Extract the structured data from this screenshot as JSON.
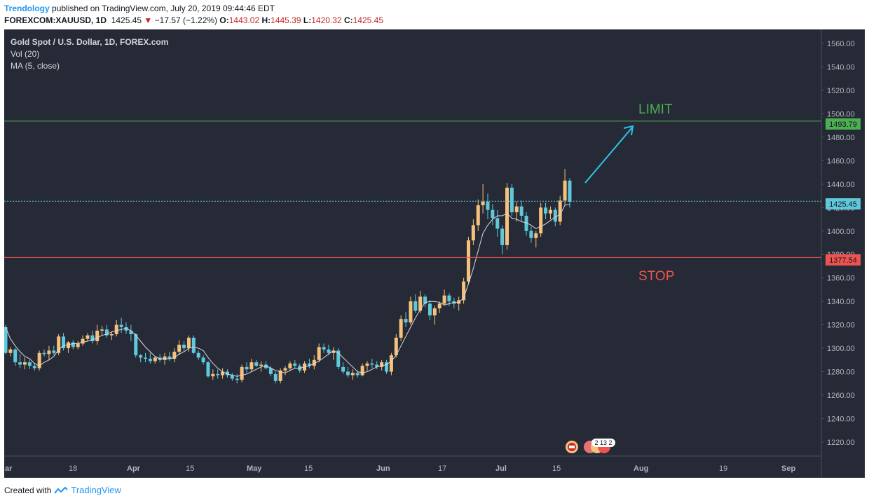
{
  "header": {
    "brand": "Trendology",
    "published": "published on TradingView.com, July 20, 2019 09:44:46 EDT",
    "symbol": "FOREXCOM:XAUUSD, 1D",
    "price": "1425.45",
    "change": "−17.57 (−1.22%)",
    "o_label": "O:",
    "o_val": "1443.02",
    "h_label": "H:",
    "h_val": "1445.39",
    "l_label": "L:",
    "l_val": "1420.32",
    "c_label": "C:",
    "c_val": "1425.45"
  },
  "legend": {
    "title": "Gold Spot / U.S. Dollar, 1D, FOREX.com",
    "vol": "Vol (20)",
    "ma": "MA (5, close)"
  },
  "annotations": {
    "limit": "LIMIT",
    "stop": "STOP",
    "limit_price": "1493.79",
    "stop_price": "1377.54",
    "last_price": "1425.45",
    "badge": "2 13 2"
  },
  "footer": {
    "created": "Created with",
    "brand": "TradingView"
  },
  "colors": {
    "background": "#262a36",
    "up": "#f6c27b",
    "down": "#5fc9dc",
    "ma": "#d8d8e0",
    "limit_line": "#4caf50",
    "stop_line": "#ef5350",
    "last_line": "#5fc9dc",
    "arrow": "#29c5e6"
  },
  "chart_data": {
    "type": "candlestick",
    "x_labels": [
      "ar",
      "18",
      "Apr",
      "15",
      "May",
      "15",
      "Jun",
      "17",
      "Jul",
      "15",
      "Aug",
      "19",
      "Sep"
    ],
    "y_ticks": [
      1220,
      1240,
      1260,
      1280,
      1300,
      1320,
      1340,
      1360,
      1380,
      1400,
      1420,
      1440,
      1460,
      1480,
      1500,
      1520,
      1540,
      1560
    ],
    "y_tick_labels": [
      "1220.00",
      "1240.00",
      "1260.00",
      "1280.00",
      "1300.00",
      "1320.00",
      "1340.00",
      "1360.00",
      "1380.00",
      "1400.00",
      "1420.00",
      "1440.00",
      "1460.00",
      "1480.00",
      "1500.00",
      "1520.00",
      "1540.00",
      "1560.00"
    ],
    "ylim": [
      1208,
      1572
    ],
    "horizontal_lines": [
      {
        "label": "LIMIT",
        "value": 1493.79
      },
      {
        "label": "STOP",
        "value": 1377.54
      },
      {
        "label": "last",
        "value": 1425.45
      }
    ],
    "ohlc": [
      [
        1318,
        1320,
        1295,
        1296
      ],
      [
        1296,
        1301,
        1293,
        1299
      ],
      [
        1299,
        1300,
        1285,
        1288
      ],
      [
        1288,
        1295,
        1283,
        1286
      ],
      [
        1286,
        1292,
        1282,
        1288
      ],
      [
        1288,
        1290,
        1282,
        1285
      ],
      [
        1285,
        1287,
        1281,
        1283
      ],
      [
        1283,
        1298,
        1281,
        1296
      ],
      [
        1296,
        1299,
        1293,
        1295
      ],
      [
        1295,
        1302,
        1290,
        1298
      ],
      [
        1298,
        1302,
        1294,
        1296
      ],
      [
        1296,
        1312,
        1294,
        1310
      ],
      [
        1310,
        1313,
        1298,
        1300
      ],
      [
        1300,
        1306,
        1296,
        1305
      ],
      [
        1305,
        1307,
        1299,
        1301
      ],
      [
        1301,
        1306,
        1299,
        1304
      ],
      [
        1304,
        1311,
        1302,
        1308
      ],
      [
        1308,
        1313,
        1306,
        1311
      ],
      [
        1311,
        1315,
        1304,
        1306
      ],
      [
        1306,
        1320,
        1303,
        1315
      ],
      [
        1315,
        1319,
        1311,
        1316
      ],
      [
        1316,
        1320,
        1309,
        1311
      ],
      [
        1311,
        1314,
        1307,
        1312
      ],
      [
        1312,
        1324,
        1310,
        1320
      ],
      [
        1320,
        1326,
        1313,
        1318
      ],
      [
        1318,
        1322,
        1312,
        1315
      ],
      [
        1315,
        1320,
        1306,
        1312
      ],
      [
        1312,
        1313,
        1292,
        1294
      ],
      [
        1294,
        1295,
        1288,
        1292
      ],
      [
        1292,
        1296,
        1288,
        1291
      ],
      [
        1291,
        1296,
        1287,
        1289
      ],
      [
        1289,
        1293,
        1287,
        1292
      ],
      [
        1292,
        1295,
        1288,
        1290
      ],
      [
        1290,
        1296,
        1286,
        1293
      ],
      [
        1293,
        1297,
        1289,
        1291
      ],
      [
        1291,
        1300,
        1288,
        1297
      ],
      [
        1297,
        1307,
        1294,
        1303
      ],
      [
        1303,
        1306,
        1297,
        1300
      ],
      [
        1300,
        1311,
        1297,
        1309
      ],
      [
        1309,
        1311,
        1295,
        1296
      ],
      [
        1296,
        1298,
        1290,
        1292
      ],
      [
        1292,
        1294,
        1286,
        1288
      ],
      [
        1288,
        1289,
        1275,
        1276
      ],
      [
        1276,
        1282,
        1273,
        1278
      ],
      [
        1278,
        1282,
        1274,
        1277
      ],
      [
        1277,
        1283,
        1274,
        1280
      ],
      [
        1280,
        1282,
        1275,
        1277
      ],
      [
        1277,
        1279,
        1272,
        1274
      ],
      [
        1274,
        1278,
        1270,
        1273
      ],
      [
        1273,
        1286,
        1271,
        1284
      ],
      [
        1284,
        1288,
        1279,
        1282
      ],
      [
        1282,
        1291,
        1280,
        1288
      ],
      [
        1288,
        1290,
        1284,
        1285
      ],
      [
        1285,
        1289,
        1280,
        1286
      ],
      [
        1286,
        1289,
        1282,
        1283
      ],
      [
        1283,
        1285,
        1276,
        1278
      ],
      [
        1278,
        1280,
        1270,
        1272
      ],
      [
        1272,
        1283,
        1270,
        1281
      ],
      [
        1281,
        1285,
        1277,
        1283
      ],
      [
        1283,
        1289,
        1281,
        1287
      ],
      [
        1287,
        1290,
        1283,
        1285
      ],
      [
        1285,
        1287,
        1279,
        1281
      ],
      [
        1281,
        1289,
        1279,
        1287
      ],
      [
        1287,
        1291,
        1283,
        1285
      ],
      [
        1285,
        1294,
        1282,
        1290
      ],
      [
        1290,
        1304,
        1288,
        1301
      ],
      [
        1301,
        1304,
        1296,
        1299
      ],
      [
        1299,
        1303,
        1294,
        1296
      ],
      [
        1296,
        1301,
        1290,
        1298
      ],
      [
        1298,
        1300,
        1282,
        1284
      ],
      [
        1284,
        1288,
        1278,
        1280
      ],
      [
        1280,
        1284,
        1275,
        1277
      ],
      [
        1277,
        1282,
        1273,
        1279
      ],
      [
        1279,
        1281,
        1275,
        1277
      ],
      [
        1277,
        1287,
        1276,
        1285
      ],
      [
        1285,
        1289,
        1281,
        1287
      ],
      [
        1287,
        1291,
        1283,
        1286
      ],
      [
        1286,
        1289,
        1282,
        1284
      ],
      [
        1284,
        1290,
        1281,
        1288
      ],
      [
        1288,
        1290,
        1278,
        1280
      ],
      [
        1280,
        1296,
        1277,
        1294
      ],
      [
        1294,
        1312,
        1292,
        1309
      ],
      [
        1309,
        1328,
        1306,
        1325
      ],
      [
        1325,
        1331,
        1318,
        1322
      ],
      [
        1322,
        1344,
        1320,
        1340
      ],
      [
        1340,
        1346,
        1330,
        1332
      ],
      [
        1332,
        1349,
        1330,
        1344
      ],
      [
        1344,
        1346,
        1335,
        1338
      ],
      [
        1338,
        1341,
        1324,
        1328
      ],
      [
        1328,
        1336,
        1320,
        1334
      ],
      [
        1334,
        1340,
        1330,
        1338
      ],
      [
        1338,
        1350,
        1336,
        1345
      ],
      [
        1345,
        1347,
        1336,
        1340
      ],
      [
        1340,
        1343,
        1334,
        1338
      ],
      [
        1338,
        1344,
        1332,
        1341
      ],
      [
        1341,
        1360,
        1338,
        1357
      ],
      [
        1357,
        1395,
        1355,
        1392
      ],
      [
        1392,
        1410,
        1388,
        1405
      ],
      [
        1405,
        1427,
        1400,
        1422
      ],
      [
        1422,
        1440,
        1415,
        1425
      ],
      [
        1425,
        1432,
        1410,
        1418
      ],
      [
        1418,
        1423,
        1405,
        1411
      ],
      [
        1411,
        1418,
        1395,
        1402
      ],
      [
        1402,
        1405,
        1380,
        1388
      ],
      [
        1388,
        1441,
        1384,
        1437
      ],
      [
        1437,
        1440,
        1413,
        1416
      ],
      [
        1416,
        1425,
        1408,
        1421
      ],
      [
        1421,
        1426,
        1408,
        1413
      ],
      [
        1413,
        1416,
        1396,
        1400
      ],
      [
        1400,
        1404,
        1390,
        1394
      ],
      [
        1394,
        1400,
        1386,
        1398
      ],
      [
        1398,
        1424,
        1395,
        1420
      ],
      [
        1420,
        1424,
        1410,
        1415
      ],
      [
        1415,
        1421,
        1410,
        1418
      ],
      [
        1418,
        1420,
        1404,
        1408
      ],
      [
        1408,
        1430,
        1405,
        1426
      ],
      [
        1426,
        1453,
        1422,
        1443
      ],
      [
        1443,
        1445,
        1420,
        1425
      ]
    ],
    "ma_values": [
      1318,
      1308,
      1302,
      1297,
      1293,
      1291,
      1287,
      1285,
      1288,
      1290,
      1293,
      1299,
      1302,
      1303,
      1304,
      1304,
      1305,
      1306,
      1307,
      1309,
      1311,
      1312,
      1314,
      1315,
      1316,
      1317,
      1315,
      1311,
      1306,
      1301,
      1297,
      1293,
      1291,
      1291,
      1291,
      1292,
      1295,
      1297,
      1300,
      1301,
      1300,
      1298,
      1292,
      1287,
      1283,
      1280,
      1278,
      1277,
      1276,
      1277,
      1278,
      1280,
      1282,
      1284,
      1285,
      1283,
      1281,
      1280,
      1279,
      1281,
      1283,
      1283,
      1284,
      1285,
      1287,
      1289,
      1292,
      1295,
      1298,
      1296,
      1292,
      1288,
      1284,
      1280,
      1279,
      1280,
      1282,
      1284,
      1285,
      1286,
      1289,
      1294,
      1302,
      1310,
      1318,
      1326,
      1333,
      1339,
      1340,
      1340,
      1339,
      1337,
      1338,
      1339,
      1339,
      1343,
      1355,
      1368,
      1383,
      1398,
      1405,
      1410,
      1413,
      1413,
      1415,
      1411,
      1410,
      1408,
      1407,
      1405,
      1402,
      1404,
      1406,
      1409,
      1412,
      1414,
      1422,
      1423
    ]
  }
}
